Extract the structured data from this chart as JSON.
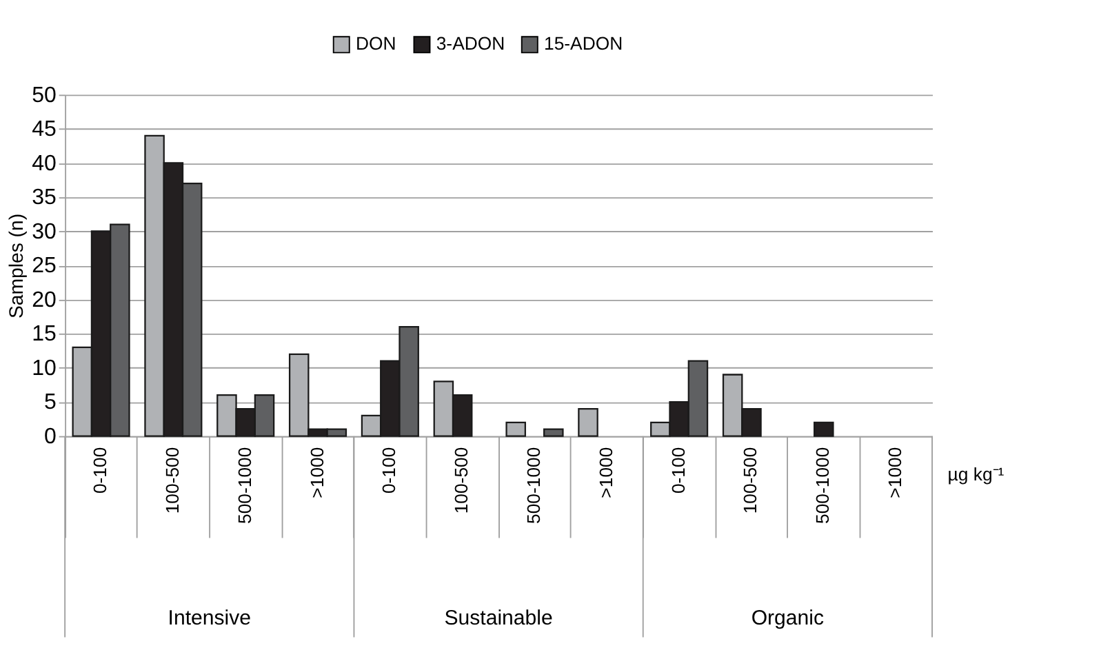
{
  "chart_data": {
    "type": "bar",
    "categories": [
      "0-100",
      "100-500",
      "500-1000",
      ">1000",
      "0-100",
      "100-500",
      "500-1000",
      ">1000",
      "0-100",
      "100-500",
      "500-1000",
      ">1000"
    ],
    "series": [
      {
        "name": "DON",
        "color": "#b0b2b5",
        "values": [
          13,
          44,
          6,
          12,
          3,
          8,
          2,
          4,
          2,
          9,
          null,
          null
        ]
      },
      {
        "name": "3-ADON",
        "color": "#231f20",
        "values": [
          30,
          40,
          4,
          1,
          11,
          6,
          null,
          null,
          5,
          4,
          2,
          null
        ]
      },
      {
        "name": "15-ADON",
        "color": "#5f6062",
        "values": [
          31,
          37,
          6,
          1,
          16,
          null,
          1,
          null,
          11,
          null,
          null,
          null
        ]
      }
    ],
    "ylabel": "Samples (n)",
    "xlabel": "µg kg⁻¹",
    "annotations": [
      "Intensive",
      "Sustainable",
      "Organic"
    ],
    "ylim": [
      0,
      50
    ],
    "yticks": [
      0,
      5,
      10,
      15,
      20,
      25,
      30,
      35,
      40,
      45,
      50
    ],
    "grid": "y",
    "legend": "top"
  }
}
